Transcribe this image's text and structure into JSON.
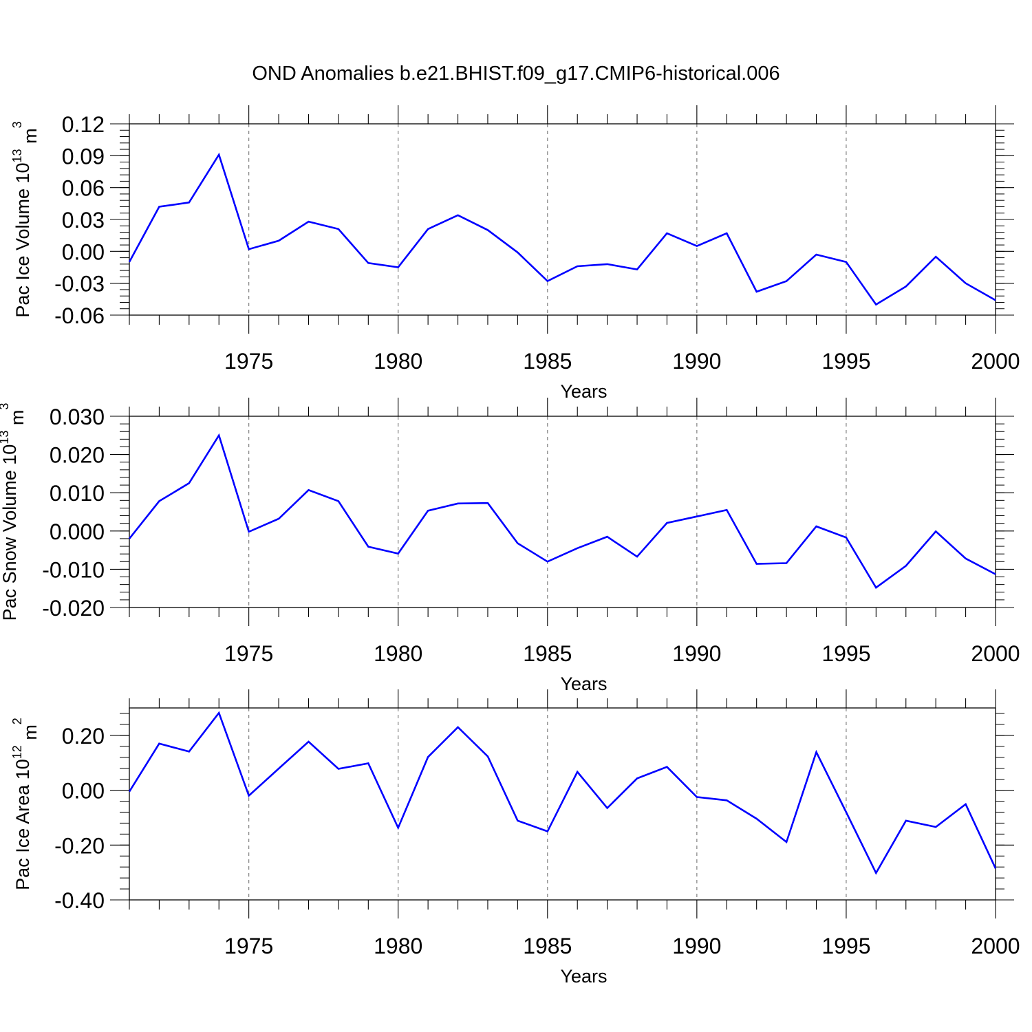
{
  "title": "OND Anomalies b.e21.BHIST.f09_g17.CMIP6-historical.006",
  "colors": {
    "line": "#0000ff",
    "axes": "#000000",
    "grid": "#808080"
  },
  "chart_data": [
    {
      "type": "line",
      "ylabel_main": "Pac Ice Volume 10",
      "ylabel_exp": "13",
      "ylabel_unit": " m",
      "ylabel_unit_exp": "3",
      "xlabel": "Years",
      "xlim": [
        1971,
        2000
      ],
      "ylim": [
        -0.06,
        0.12
      ],
      "yticks": [
        -0.06,
        -0.03,
        0.0,
        0.03,
        0.06,
        0.09,
        0.12
      ],
      "ytick_labels": [
        "-0.06",
        "-0.03",
        "0.00",
        "0.03",
        "0.06",
        "0.09",
        "0.12"
      ],
      "xticks": [
        1975,
        1980,
        1985,
        1990,
        1995,
        2000
      ],
      "xtick_labels": [
        "1975",
        "1980",
        "1985",
        "1990",
        "1995",
        "2000"
      ],
      "grid": "vertical dashed at major x ticks",
      "x": [
        1971,
        1972,
        1973,
        1974,
        1975,
        1976,
        1977,
        1978,
        1979,
        1980,
        1981,
        1982,
        1983,
        1984,
        1985,
        1986,
        1987,
        1988,
        1989,
        1990,
        1991,
        1992,
        1993,
        1994,
        1995,
        1996,
        1997,
        1998,
        1999,
        2000
      ],
      "series": [
        {
          "values": [
            -0.01,
            0.042,
            0.046,
            0.091,
            0.002,
            0.01,
            0.028,
            0.021,
            -0.011,
            -0.015,
            0.021,
            0.034,
            0.02,
            -0.001,
            -0.028,
            -0.014,
            -0.012,
            -0.017,
            0.017,
            0.005,
            0.017,
            -0.038,
            -0.028,
            -0.003,
            -0.01,
            -0.05,
            -0.033,
            -0.005,
            -0.03,
            -0.046
          ]
        }
      ]
    },
    {
      "type": "line",
      "ylabel_main": "Pac Snow Volume 10",
      "ylabel_exp": "13",
      "ylabel_unit": " m",
      "ylabel_unit_exp": "3",
      "xlabel": "Years",
      "xlim": [
        1971,
        2000
      ],
      "ylim": [
        -0.02,
        0.03
      ],
      "yticks": [
        -0.02,
        -0.01,
        0.0,
        0.01,
        0.02,
        0.03
      ],
      "ytick_labels": [
        "-0.020",
        "-0.010",
        "0.000",
        "0.010",
        "0.020",
        "0.030"
      ],
      "xticks": [
        1975,
        1980,
        1985,
        1990,
        1995,
        2000
      ],
      "xtick_labels": [
        "1975",
        "1980",
        "1985",
        "1990",
        "1995",
        "2000"
      ],
      "grid": "vertical dashed at major x ticks",
      "x": [
        1971,
        1972,
        1973,
        1974,
        1975,
        1976,
        1977,
        1978,
        1979,
        1980,
        1981,
        1982,
        1983,
        1984,
        1985,
        1986,
        1987,
        1988,
        1989,
        1990,
        1991,
        1992,
        1993,
        1994,
        1995,
        1996,
        1997,
        1998,
        1999,
        2000
      ],
      "series": [
        {
          "values": [
            -0.002,
            0.0078,
            0.0125,
            0.025,
            -0.0002,
            0.0032,
            0.0107,
            0.0078,
            -0.0041,
            -0.0059,
            0.0053,
            0.0072,
            0.0073,
            -0.0032,
            -0.008,
            -0.0045,
            -0.0015,
            -0.0067,
            0.0021,
            0.0038,
            0.0055,
            -0.0086,
            -0.0084,
            0.0012,
            -0.0017,
            -0.0148,
            -0.0091,
            -0.0001,
            -0.0072,
            -0.0113
          ]
        }
      ]
    },
    {
      "type": "line",
      "ylabel_main": "Pac Ice Area 10",
      "ylabel_exp": "12",
      "ylabel_unit": " m",
      "ylabel_unit_exp": "2",
      "xlabel": "Years",
      "xlim": [
        1971,
        2000
      ],
      "ylim": [
        -0.4,
        0.3
      ],
      "yticks": [
        -0.4,
        -0.2,
        0.0,
        0.2
      ],
      "ytick_labels": [
        "-0.40",
        "-0.20",
        "0.00",
        "0.20"
      ],
      "xticks": [
        1975,
        1980,
        1985,
        1990,
        1995,
        2000
      ],
      "xtick_labels": [
        "1975",
        "1980",
        "1985",
        "1990",
        "1995",
        "2000"
      ],
      "grid": "vertical dashed at major x ticks",
      "x": [
        1971,
        1972,
        1973,
        1974,
        1975,
        1976,
        1977,
        1978,
        1979,
        1980,
        1981,
        1982,
        1983,
        1984,
        1985,
        1986,
        1987,
        1988,
        1989,
        1990,
        1991,
        1992,
        1993,
        1994,
        1995,
        1996,
        1997,
        1998,
        1999,
        2000
      ],
      "series": [
        {
          "values": [
            -0.005,
            0.17,
            0.141,
            0.282,
            -0.02,
            0.079,
            0.177,
            0.078,
            0.098,
            -0.137,
            0.121,
            0.23,
            0.123,
            -0.111,
            -0.15,
            0.067,
            -0.065,
            0.043,
            0.085,
            -0.025,
            -0.037,
            -0.104,
            -0.189,
            0.139,
            -0.08,
            -0.302,
            -0.111,
            -0.134,
            -0.051,
            -0.285
          ]
        }
      ]
    }
  ]
}
